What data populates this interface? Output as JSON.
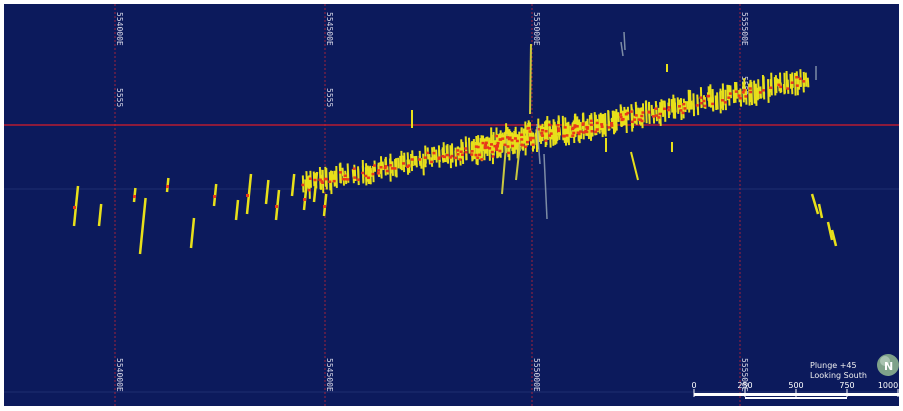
{
  "view": {
    "plunge_text": "Plunge +45",
    "direction_text": "Looking South"
  },
  "grid": {
    "easting_labels": [
      "554000E",
      "554500E",
      "555000E",
      "555500E"
    ],
    "northing_label": "5555"
  },
  "scale_bar": {
    "labels": [
      "0",
      "250",
      "500",
      "750",
      "1000"
    ]
  },
  "compass": {
    "letter": "N",
    "icon": "north-arrow-globe-icon"
  },
  "colors": {
    "background": "#0c1a5c",
    "grid_line": "#d81c2a",
    "drillhole_trace": "#e8e01a",
    "high_grade_intercept": "#e8391b",
    "scale_bar": "#ffffff"
  }
}
